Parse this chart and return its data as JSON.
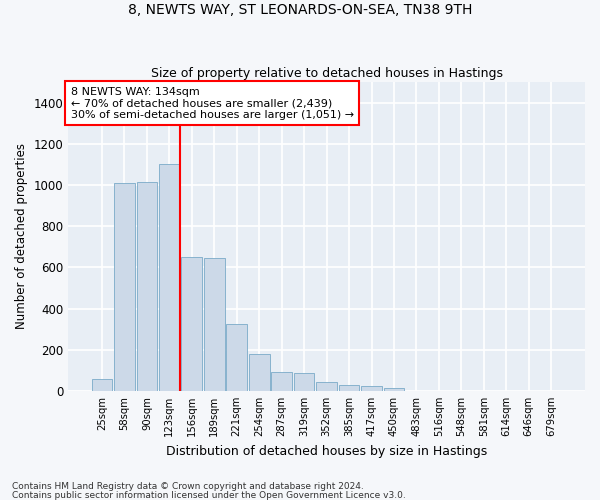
{
  "title": "8, NEWTS WAY, ST LEONARDS-ON-SEA, TN38 9TH",
  "subtitle": "Size of property relative to detached houses in Hastings",
  "xlabel": "Distribution of detached houses by size in Hastings",
  "ylabel": "Number of detached properties",
  "bar_color": "#ccd9e8",
  "bar_edge_color": "#7aaac8",
  "background_color": "#e8eef5",
  "grid_color": "#ffffff",
  "annotation_text_line1": "8 NEWTS WAY: 134sqm",
  "annotation_text_line2": "← 70% of detached houses are smaller (2,439)",
  "annotation_text_line3": "30% of semi-detached houses are larger (1,051) →",
  "footer_line1": "Contains HM Land Registry data © Crown copyright and database right 2024.",
  "footer_line2": "Contains public sector information licensed under the Open Government Licence v3.0.",
  "bin_labels": [
    "25sqm",
    "58sqm",
    "90sqm",
    "123sqm",
    "156sqm",
    "189sqm",
    "221sqm",
    "254sqm",
    "287sqm",
    "319sqm",
    "352sqm",
    "385sqm",
    "417sqm",
    "450sqm",
    "483sqm",
    "516sqm",
    "548sqm",
    "581sqm",
    "614sqm",
    "646sqm",
    "679sqm"
  ],
  "bin_values": [
    60,
    1010,
    1015,
    1100,
    650,
    645,
    325,
    180,
    90,
    85,
    45,
    27,
    22,
    15,
    0,
    0,
    0,
    0,
    0,
    0,
    0
  ],
  "ylim": [
    0,
    1500
  ],
  "yticks": [
    0,
    200,
    400,
    600,
    800,
    1000,
    1200,
    1400
  ],
  "fig_bg": "#f5f7fa",
  "title_fontsize": 10,
  "subtitle_fontsize": 9
}
